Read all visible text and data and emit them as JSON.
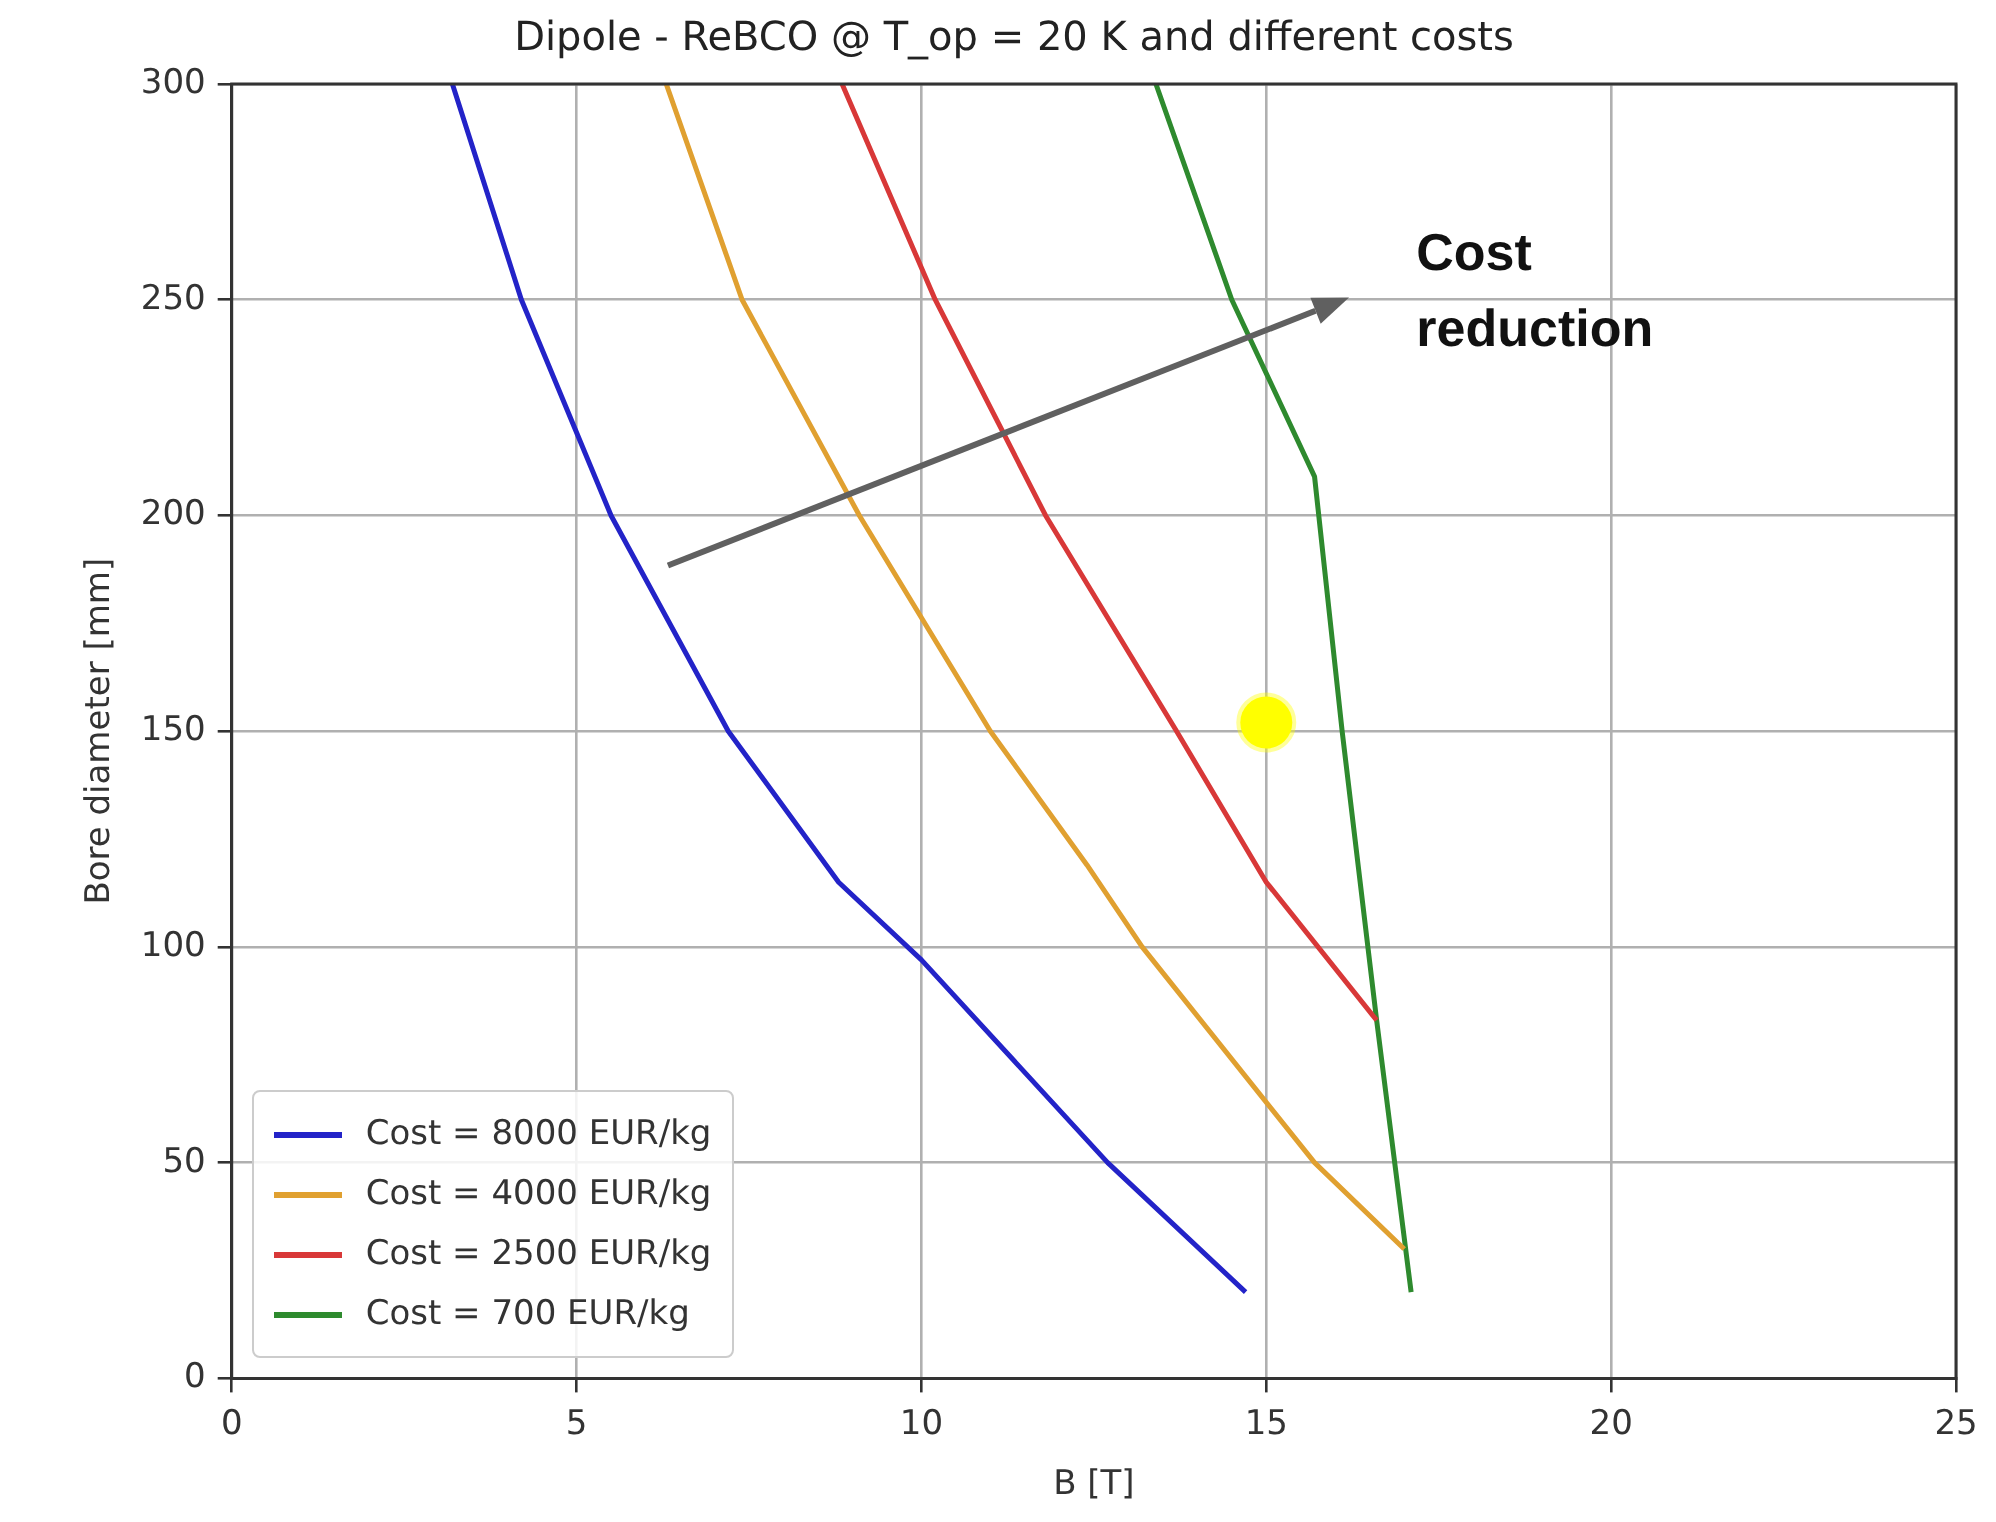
{
  "chart_data": {
    "type": "line",
    "title": "Dipole - ReBCO @ T_op = 20 K and different costs",
    "xlabel": "B [T]",
    "ylabel": "Bore diameter [mm]",
    "xlim": [
      0,
      25
    ],
    "xticks": [
      0,
      5,
      10,
      15,
      20,
      25
    ],
    "ylim": [
      0,
      300
    ],
    "yticks": [
      0,
      50,
      100,
      150,
      200,
      250,
      300
    ],
    "grid": true,
    "legend": "bottom left",
    "annotations": [
      "Cost reduction"
    ],
    "series": [
      {
        "name": "Cost = 8000 EUR/kg",
        "color": "#2323c8",
        "x": [
          3.2,
          4.2,
          5.5,
          7.2,
          8.8,
          10,
          12.7,
          14.7
        ],
        "values": [
          300,
          250,
          200,
          150,
          115,
          97,
          50,
          20
        ]
      },
      {
        "name": "Cost = 4000 EUR/kg",
        "color": "#e0a030",
        "x": [
          6.3,
          7.4,
          9.1,
          11.0,
          12.4,
          13.2,
          15.7,
          17.0
        ],
        "values": [
          300,
          250,
          200,
          150,
          119,
          100,
          50,
          30
        ]
      },
      {
        "name": "Cost = 2500 EUR/kg",
        "color": "#d83838",
        "x": [
          8.85,
          10.2,
          11.8,
          13.7,
          15.0,
          16.6
        ],
        "values": [
          300,
          250,
          200,
          150,
          115,
          83
        ]
      },
      {
        "name": "Cost = 700 EUR/kg",
        "color": "#2e8a2e",
        "x": [
          13.4,
          14.5,
          15.7,
          16.1,
          16.6,
          17.1
        ],
        "values": [
          300,
          250,
          209,
          150,
          83,
          20
        ]
      },
      {
        "type": "scatter",
        "color": "#ffff00",
        "x": [
          15
        ],
        "values": [
          152
        ],
        "marker": "circle"
      }
    ]
  }
}
